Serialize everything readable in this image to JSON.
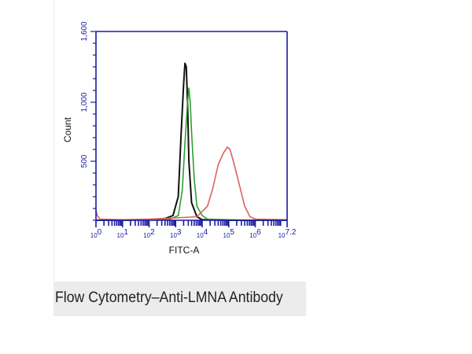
{
  "caption": "Flow Cytometry–Anti-LMNA Antibody",
  "chart_data": {
    "type": "line",
    "xlabel": "FITC-A",
    "ylabel": "Count",
    "xscale": "log10",
    "xlim": [
      0,
      7.2
    ],
    "ylim": [
      0,
      1600
    ],
    "yticks": [
      "500",
      "1,000",
      "1,600"
    ],
    "ytick_values": [
      500,
      1000,
      1600
    ],
    "xticks": [
      {
        "base": "10",
        "exp": "0"
      },
      {
        "base": "10",
        "exp": "1"
      },
      {
        "base": "10",
        "exp": "2"
      },
      {
        "base": "10",
        "exp": "3"
      },
      {
        "base": "10",
        "exp": "4"
      },
      {
        "base": "10",
        "exp": "5"
      },
      {
        "base": "10",
        "exp": "6"
      },
      {
        "base": "10",
        "exp": "7.2"
      }
    ],
    "xtick_values": [
      0,
      1,
      2,
      3,
      4,
      5,
      6,
      7.2
    ],
    "axis_color": "#1a1aa6",
    "series": [
      {
        "color": "#111111",
        "x": [
          0,
          1,
          2,
          2.6,
          2.9,
          3.1,
          3.2,
          3.3,
          3.35,
          3.4,
          3.45,
          3.5,
          3.6,
          3.8,
          4.0,
          5,
          6,
          7.2
        ],
        "values": [
          0,
          0,
          5,
          15,
          40,
          200,
          700,
          1150,
          1330,
          1300,
          1000,
          500,
          150,
          30,
          5,
          0,
          0,
          0
        ]
      },
      {
        "color": "#2ca02c",
        "x": [
          0,
          1,
          2,
          2.8,
          3.1,
          3.25,
          3.35,
          3.45,
          3.5,
          3.55,
          3.6,
          3.7,
          3.8,
          4.0,
          4.2,
          5,
          6,
          7.2
        ],
        "values": [
          0,
          0,
          5,
          10,
          40,
          250,
          650,
          1000,
          1120,
          1000,
          750,
          350,
          120,
          40,
          10,
          5,
          0,
          0
        ]
      },
      {
        "color": "#e06060",
        "x": [
          0,
          0.05,
          0.15,
          1,
          2,
          3,
          3.8,
          4.2,
          4.4,
          4.6,
          4.8,
          4.95,
          5.05,
          5.2,
          5.4,
          5.6,
          5.8,
          6.0,
          7.2
        ],
        "values": [
          80,
          40,
          10,
          5,
          10,
          20,
          30,
          120,
          270,
          470,
          570,
          620,
          600,
          480,
          300,
          120,
          30,
          10,
          5
        ]
      }
    ]
  }
}
